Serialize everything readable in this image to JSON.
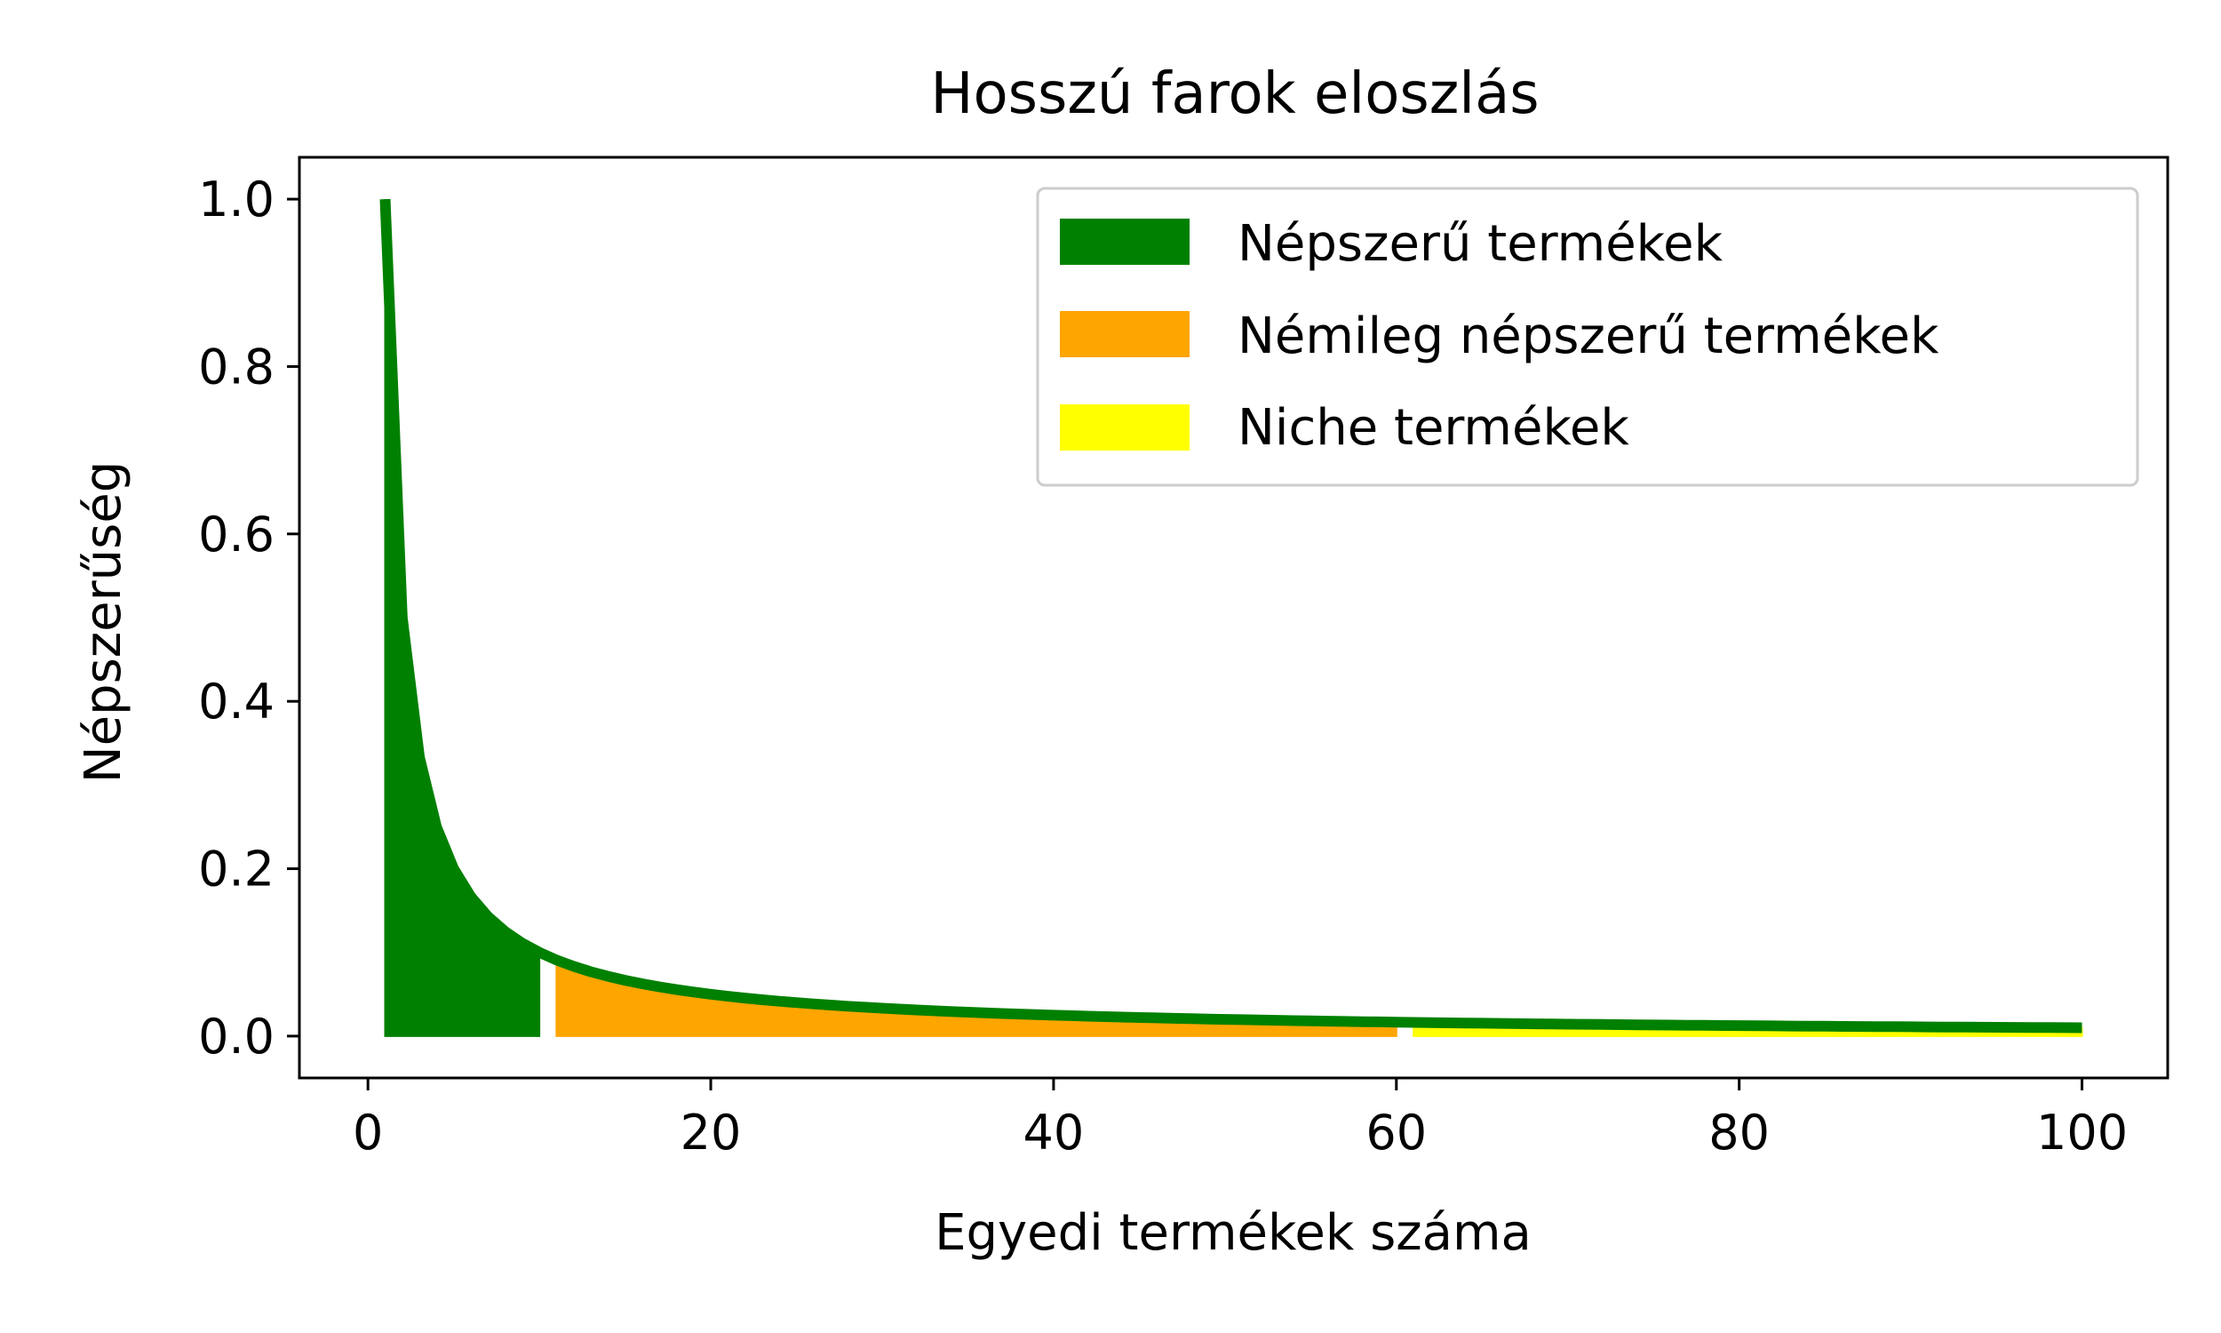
{
  "chart_data": {
    "type": "area",
    "title": "Hosszú farok eloszlás",
    "xlabel": "Egyedi termékek száma",
    "ylabel": "Népszerűség",
    "xlim": [
      -4,
      105
    ],
    "ylim": [
      -0.05,
      1.05
    ],
    "xticks": [
      0,
      20,
      40,
      60,
      80,
      100
    ],
    "yticks": [
      0.0,
      0.2,
      0.4,
      0.6,
      0.8,
      1.0
    ],
    "function": "y = 1/x",
    "x": [
      1,
      100
    ],
    "curve_color": "#008000",
    "legend_position": "top-right",
    "grid": false,
    "series": [
      {
        "name": "Népszerű termékek",
        "x_range": [
          1,
          10
        ],
        "color": "#008000"
      },
      {
        "name": "Némileg népszerű termékek",
        "x_range": [
          11,
          60
        ],
        "color": "#ffa500"
      },
      {
        "name": "Niche termékek",
        "x_range": [
          61,
          100
        ],
        "color": "#ffff00"
      }
    ]
  }
}
